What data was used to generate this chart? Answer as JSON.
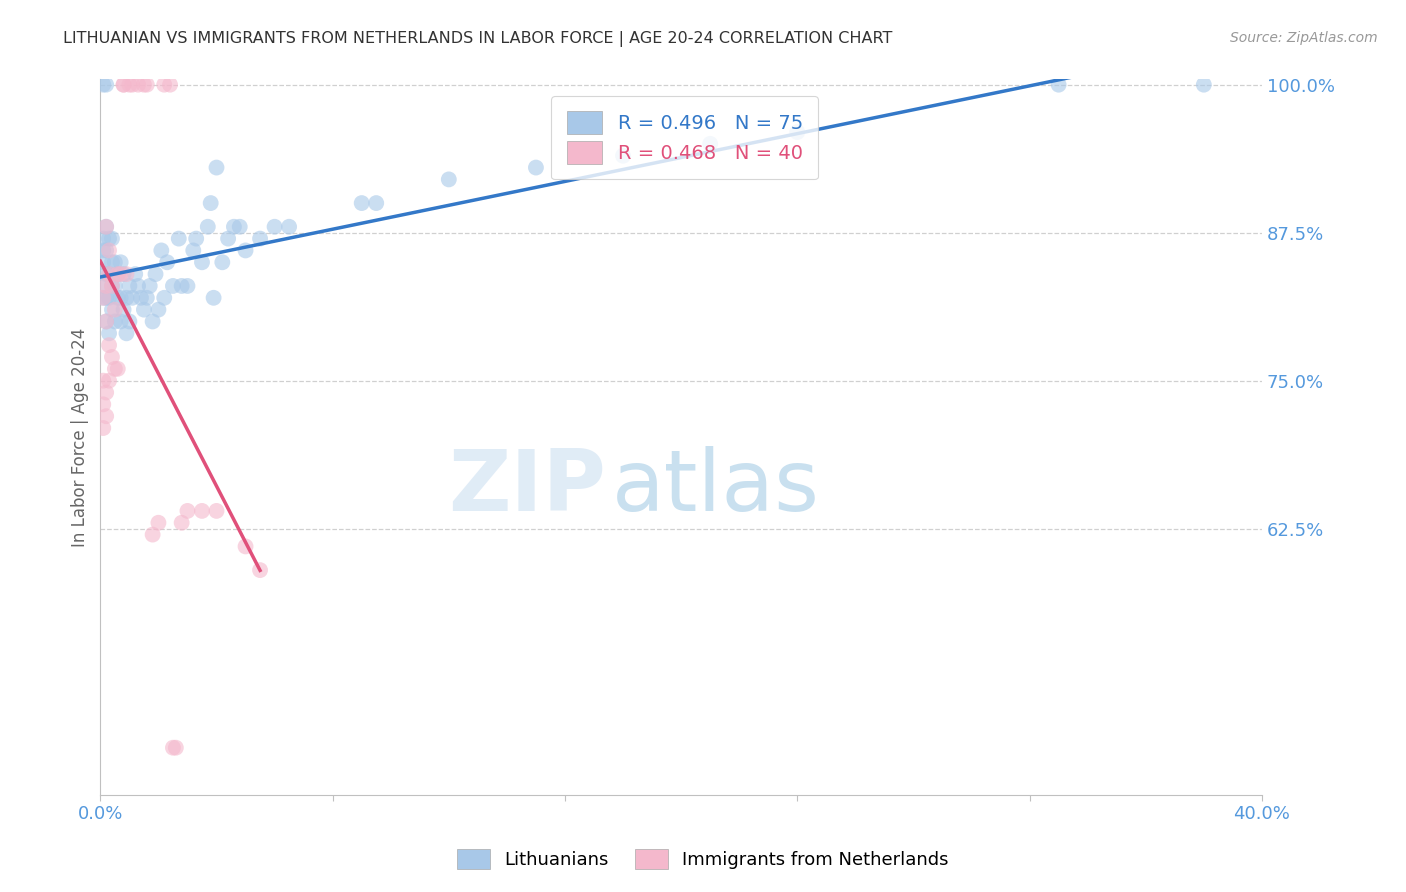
{
  "title": "LITHUANIAN VS IMMIGRANTS FROM NETHERLANDS IN LABOR FORCE | AGE 20-24 CORRELATION CHART",
  "source": "Source: ZipAtlas.com",
  "ylabel": "In Labor Force | Age 20-24",
  "blue_label": "Lithuanians",
  "pink_label": "Immigrants from Netherlands",
  "blue_color": "#a8c8e8",
  "pink_color": "#f4b8cc",
  "blue_line_color": "#3378c8",
  "pink_line_color": "#e0507a",
  "legend_R_blue": "R = 0.496",
  "legend_N_blue": "N = 75",
  "legend_R_pink": "R = 0.468",
  "legend_N_pink": "N = 40",
  "xlim": [
    0.0,
    0.4
  ],
  "ylim": [
    0.4,
    1.005
  ],
  "yticks": [
    0.625,
    0.75,
    0.875,
    1.0
  ],
  "ytick_labels": [
    "62.5%",
    "75.0%",
    "87.5%",
    "100.0%"
  ],
  "xticks": [
    0.0,
    0.08,
    0.16,
    0.24,
    0.32,
    0.4
  ],
  "blue_x": [
    0.001,
    0.001,
    0.001,
    0.001,
    0.001,
    0.001,
    0.002,
    0.002,
    0.002,
    0.002,
    0.002,
    0.002,
    0.003,
    0.003,
    0.003,
    0.003,
    0.004,
    0.004,
    0.004,
    0.004,
    0.005,
    0.005,
    0.005,
    0.006,
    0.006,
    0.007,
    0.007,
    0.007,
    0.008,
    0.008,
    0.009,
    0.009,
    0.01,
    0.01,
    0.011,
    0.012,
    0.013,
    0.014,
    0.015,
    0.016,
    0.017,
    0.018,
    0.019,
    0.02,
    0.021,
    0.022,
    0.023,
    0.025,
    0.027,
    0.028,
    0.03,
    0.032,
    0.033,
    0.035,
    0.037,
    0.038,
    0.039,
    0.04,
    0.042,
    0.044,
    0.046,
    0.048,
    0.05,
    0.055,
    0.06,
    0.065,
    0.09,
    0.095,
    0.12,
    0.15,
    0.18,
    0.21,
    0.24,
    0.33,
    0.38
  ],
  "blue_y": [
    0.82,
    0.83,
    0.85,
    0.86,
    0.87,
    1.0,
    0.8,
    0.82,
    0.84,
    0.86,
    0.88,
    1.0,
    0.79,
    0.82,
    0.84,
    0.87,
    0.81,
    0.83,
    0.85,
    0.87,
    0.8,
    0.83,
    0.85,
    0.82,
    0.84,
    0.8,
    0.82,
    0.85,
    0.81,
    0.84,
    0.79,
    0.82,
    0.8,
    0.83,
    0.82,
    0.84,
    0.83,
    0.82,
    0.81,
    0.82,
    0.83,
    0.8,
    0.84,
    0.81,
    0.86,
    0.82,
    0.85,
    0.83,
    0.87,
    0.83,
    0.83,
    0.86,
    0.87,
    0.85,
    0.88,
    0.9,
    0.82,
    0.93,
    0.85,
    0.87,
    0.88,
    0.88,
    0.86,
    0.87,
    0.88,
    0.88,
    0.9,
    0.9,
    0.92,
    0.93,
    0.94,
    0.95,
    0.96,
    1.0,
    1.0
  ],
  "pink_x": [
    0.001,
    0.001,
    0.001,
    0.001,
    0.002,
    0.002,
    0.002,
    0.002,
    0.002,
    0.003,
    0.003,
    0.003,
    0.003,
    0.004,
    0.004,
    0.005,
    0.005,
    0.006,
    0.006,
    0.007,
    0.008,
    0.008,
    0.009,
    0.01,
    0.011,
    0.013,
    0.015,
    0.016,
    0.018,
    0.02,
    0.022,
    0.024,
    0.025,
    0.026,
    0.028,
    0.03,
    0.035,
    0.04,
    0.05,
    0.055
  ],
  "pink_y": [
    0.71,
    0.73,
    0.75,
    0.82,
    0.72,
    0.74,
    0.8,
    0.83,
    0.88,
    0.75,
    0.78,
    0.84,
    0.86,
    0.77,
    0.83,
    0.76,
    0.81,
    0.76,
    0.84,
    0.84,
    1.0,
    1.0,
    0.84,
    1.0,
    1.0,
    1.0,
    1.0,
    1.0,
    0.62,
    0.63,
    1.0,
    1.0,
    0.44,
    0.44,
    0.63,
    0.64,
    0.64,
    0.64,
    0.61,
    0.59
  ],
  "watermark_zip": "ZIP",
  "watermark_atlas": "atlas",
  "background_color": "#ffffff",
  "grid_color": "#d0d0d0",
  "spine_color": "#c0c0c0",
  "tick_color_blue": "#5599dd",
  "title_color": "#333333",
  "source_color": "#999999"
}
